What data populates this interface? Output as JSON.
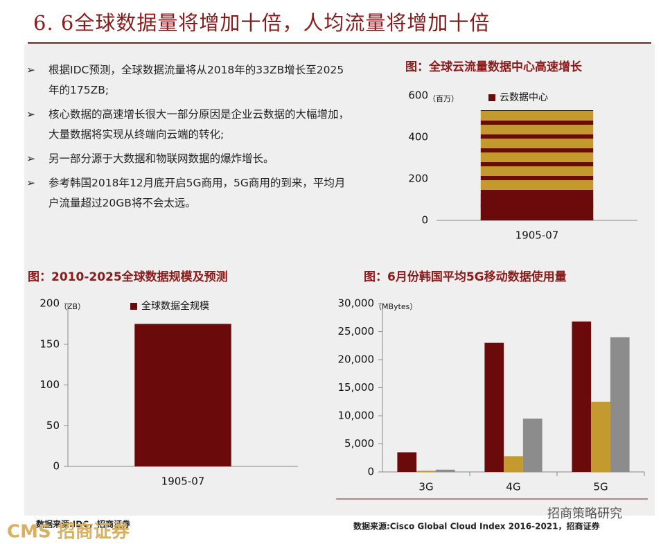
{
  "title": "6. 6全球数据量将增加十倍，人均流量将增加十倍",
  "bullets": [
    "根据IDC预测，全球数据流量将从2018年的33ZB增长至2025年的175ZB;",
    "核心数据的高速增长很大一部分原因是企业云数据的大幅增加，大量数据将实现从终端向云端的转化;",
    "另一部分源于大数据和物联网数据的爆炸增长。",
    "参考韩国2018年12月底开启5G商用，5G商用的到来，平均月户流量超过20GB将不会太远。"
  ],
  "chart_data": [
    {
      "type": "bar",
      "title": "图：全球云流量数据中心高速增长",
      "y_label": "（百万）",
      "categories": [
        "1905-07"
      ],
      "series": [
        {
          "name": "云数据中心",
          "color": "#6b0a0a",
          "values": [
            530
          ]
        }
      ],
      "ylim": [
        0,
        600
      ],
      "yticks": [
        0,
        200,
        400,
        600
      ],
      "grid": false,
      "legend": "top"
    },
    {
      "type": "bar",
      "title": "图：2010-2025全球数据规模及预测",
      "y_label": "（ZB）",
      "categories": [
        "1905-07"
      ],
      "series": [
        {
          "name": "全球数据全规模",
          "color": "#6b0a0a",
          "values": [
            175
          ]
        }
      ],
      "ylim": [
        0,
        200
      ],
      "yticks": [
        0,
        50,
        100,
        150,
        200
      ],
      "grid": false,
      "legend": "top"
    },
    {
      "type": "bar",
      "title": "图：6月份韩国平均5G移动数据使用量",
      "y_label": "（MBytes）",
      "categories": [
        "3G",
        "4G",
        "5G"
      ],
      "series": [
        {
          "color": "#6b0a0a",
          "values": [
            3500,
            23000,
            26800
          ]
        },
        {
          "color": "#c49a2e",
          "values": [
            200,
            2800,
            12500
          ]
        },
        {
          "color": "#8c8c8c",
          "values": [
            400,
            9500,
            24000
          ]
        }
      ],
      "ylim": [
        0,
        30000
      ],
      "yticks": [
        0,
        {
          "value": 5000,
          "label": "5,000"
        },
        {
          "value": 10000,
          "label": "10,000"
        },
        {
          "value": 15000,
          "label": "15,000"
        },
        {
          "value": 20000,
          "label": "20,000"
        },
        {
          "value": 25000,
          "label": "25,000"
        },
        {
          "value": 30000,
          "label": "30,000"
        }
      ],
      "grid": false
    }
  ],
  "sources": [
    "数据来源:IDC，招商证券",
    "数据来源:Cisco Global Cloud Index 2016-2021，招商证券"
  ],
  "watermark": "招商策略研究",
  "logo": "CMS 招商证券"
}
